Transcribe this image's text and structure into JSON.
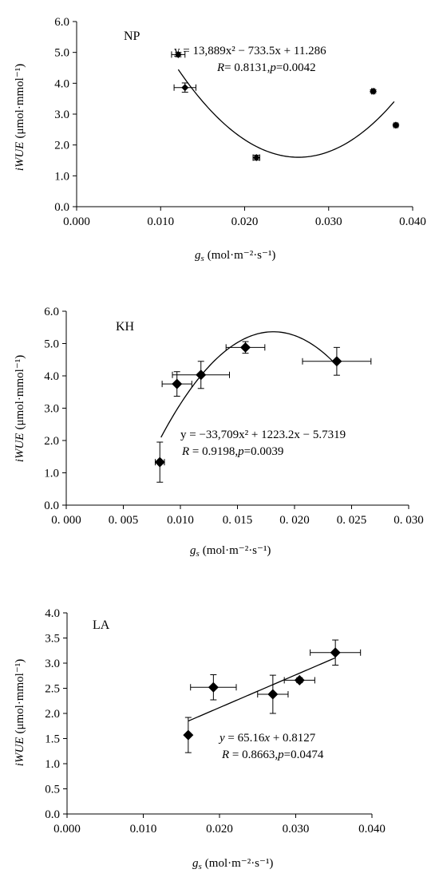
{
  "chart_data": [
    {
      "type": "scatter",
      "panel_label": "NP",
      "xlabel_main": "g",
      "xlabel_sub": "s",
      "xlabel_unit": "(mol·m⁻²·s⁻¹)",
      "ylabel_main": "iWUE",
      "ylabel_unit": "(μmol·mmol⁻¹)",
      "xlim": [
        0,
        0.04
      ],
      "ylim": [
        0,
        6
      ],
      "xticks": [
        "0.000",
        "0.010",
        "0.020",
        "0.030",
        "0.040"
      ],
      "yticks": [
        "0.0",
        "1.0",
        "2.0",
        "3.0",
        "4.0",
        "5.0",
        "6.0"
      ],
      "x_tick_values": [
        0,
        0.01,
        0.02,
        0.03,
        0.04
      ],
      "y_tick_values": [
        0,
        1,
        2,
        3,
        4,
        5,
        6
      ],
      "points": [
        {
          "x": 0.0121,
          "y": 4.93,
          "xerr": 0.0008,
          "yerr": 0.07
        },
        {
          "x": 0.0129,
          "y": 3.86,
          "xerr": 0.0013,
          "yerr": 0.15
        },
        {
          "x": 0.0214,
          "y": 1.59,
          "xerr": 0.0004,
          "yerr": 0.08
        },
        {
          "x": 0.0353,
          "y": 3.74,
          "xerr": 0.0002,
          "yerr": 0.05
        },
        {
          "x": 0.038,
          "y": 2.64,
          "xerr": 0.0002,
          "yerr": 0.05
        }
      ],
      "fit": {
        "type": "poly2",
        "a": 13889,
        "b": -733.5,
        "c": 11.286,
        "x_range": [
          0.0121,
          0.0378
        ]
      },
      "equation": {
        "line1": "y = 13,889x² − 733.5x + 11.286",
        "r_label": "R",
        "r_text": "= 0.8131,",
        "p_label": "p",
        "p_text": "=0.0042"
      }
    },
    {
      "type": "scatter",
      "panel_label": "KH",
      "xlabel_main": "g",
      "xlabel_sub": "s",
      "xlabel_unit": "(mol·m⁻²·s⁻¹)",
      "ylabel_main": "iWUE",
      "ylabel_unit": "(μmol·mmol⁻¹)",
      "xlim": [
        0,
        0.03
      ],
      "ylim": [
        0,
        6
      ],
      "xticks": [
        "0. 000",
        "0. 005",
        "0.010",
        "0. 015",
        "0. 020",
        "0. 025",
        "0. 030"
      ],
      "yticks": [
        "0.0",
        "1.0",
        "2.0",
        "3.0",
        "4.0",
        "5.0",
        "6.0"
      ],
      "x_tick_values": [
        0,
        0.005,
        0.01,
        0.015,
        0.02,
        0.025,
        0.03
      ],
      "y_tick_values": [
        0,
        1,
        2,
        3,
        4,
        5,
        6
      ],
      "points": [
        {
          "x": 0.0082,
          "y": 1.33,
          "xerr": 0.0004,
          "yerr": 0.62
        },
        {
          "x": 0.0097,
          "y": 3.75,
          "xerr": 0.0013,
          "yerr": 0.38
        },
        {
          "x": 0.0118,
          "y": 4.03,
          "xerr": 0.0025,
          "yerr": 0.42
        },
        {
          "x": 0.0157,
          "y": 4.88,
          "xerr": 0.0017,
          "yerr": 0.18
        },
        {
          "x": 0.0237,
          "y": 4.45,
          "xerr": 0.003,
          "yerr": 0.43
        }
      ],
      "fit": {
        "type": "poly2",
        "a": -33709,
        "b": 1223.2,
        "c": -5.7319,
        "x_range": [
          0.0083,
          0.0233
        ]
      },
      "equation": {
        "line1": "y = −33,709x² + 1223.2x − 5.7319",
        "r_label": "R",
        "r_text": " = 0.9198,",
        "p_label": "p",
        "p_text": "=0.0039"
      }
    },
    {
      "type": "scatter",
      "panel_label": "LA",
      "xlabel_main": "g",
      "xlabel_sub": "s",
      "xlabel_unit": "(mol·m⁻²·s⁻¹)",
      "ylabel_main": "iWUE",
      "ylabel_unit": "(μmol·mmol⁻¹)",
      "xlim": [
        0,
        0.04
      ],
      "ylim": [
        0,
        4
      ],
      "xticks": [
        "0.000",
        "0.010",
        "0.020",
        "0.030",
        "0.040"
      ],
      "yticks": [
        "0.0",
        "0.5",
        "1.0",
        "1.5",
        "2.0",
        "2.5",
        "3.0",
        "3.5",
        "4.0"
      ],
      "x_tick_values": [
        0,
        0.01,
        0.02,
        0.03,
        0.04
      ],
      "y_tick_values": [
        0,
        0.5,
        1,
        1.5,
        2,
        2.5,
        3,
        3.5,
        4
      ],
      "points": [
        {
          "x": 0.0159,
          "y": 1.57,
          "xerr": 0.0001,
          "yerr": 0.35
        },
        {
          "x": 0.0192,
          "y": 2.52,
          "xerr": 0.003,
          "yerr": 0.25
        },
        {
          "x": 0.027,
          "y": 2.38,
          "xerr": 0.002,
          "yerr": 0.38
        },
        {
          "x": 0.0305,
          "y": 2.66,
          "xerr": 0.002,
          "yerr": 0.05
        },
        {
          "x": 0.0352,
          "y": 3.21,
          "xerr": 0.0033,
          "yerr": 0.25
        }
      ],
      "fit": {
        "type": "linear",
        "a": 0,
        "b": 65.16,
        "c": 0.8127,
        "x_range": [
          0.0159,
          0.0352
        ]
      },
      "equation": {
        "line1_y": "y",
        "line1_mid": " = 65.16",
        "line1_x": "x",
        "line1_end": " + 0.8127",
        "r_label": "R",
        "r_text": " = 0.8663,",
        "p_label": "p",
        "p_text": "=0.0474"
      }
    }
  ]
}
